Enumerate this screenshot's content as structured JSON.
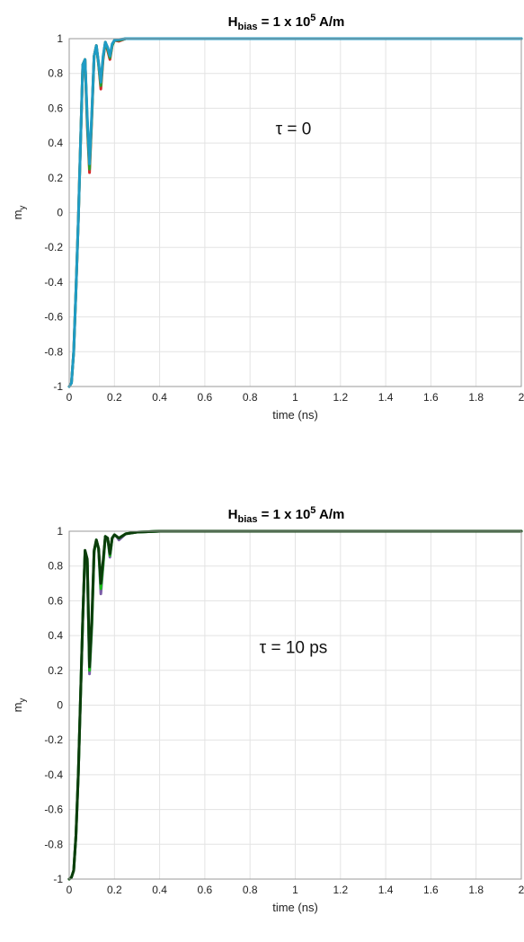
{
  "chart_data": [
    {
      "type": "line",
      "title_main": "H",
      "title_sub": "bias",
      "title_rest": " = 1 x 10",
      "title_sup": "5",
      "title_unit": " A/m",
      "xlabel": "time (ns)",
      "ylabel_main": "m",
      "ylabel_sub": "y",
      "annotation": "τ = 0",
      "xlim": [
        0,
        2
      ],
      "ylim": [
        -1,
        1
      ],
      "xticks": [
        "0",
        "0.2",
        "0.4",
        "0.6",
        "0.8",
        "1",
        "1.2",
        "1.4",
        "1.6",
        "1.8",
        "2"
      ],
      "yticks": [
        "1",
        "0.8",
        "0.6",
        "0.4",
        "0.2",
        "0",
        "-0.2",
        "-0.4",
        "-0.6",
        "-0.8",
        "-1"
      ],
      "grid": true,
      "series": [
        {
          "color": "#d62728",
          "x": [
            0,
            0.01,
            0.02,
            0.03,
            0.04,
            0.05,
            0.06,
            0.07,
            0.08,
            0.09,
            0.1,
            0.11,
            0.12,
            0.13,
            0.14,
            0.15,
            0.16,
            0.17,
            0.18,
            0.19,
            0.2,
            0.22,
            0.25,
            0.3,
            0.4,
            0.6,
            1.0,
            2.0
          ],
          "y": [
            -1,
            -0.98,
            -0.8,
            -0.45,
            -0.05,
            0.4,
            0.85,
            0.88,
            0.5,
            0.23,
            0.55,
            0.9,
            0.96,
            0.85,
            0.71,
            0.88,
            0.98,
            0.93,
            0.88,
            0.96,
            0.99,
            0.985,
            1.0,
            1.0,
            1.0,
            1.0,
            1.0,
            1.0
          ]
        },
        {
          "color": "#2ca02c",
          "x": [
            0,
            0.01,
            0.02,
            0.03,
            0.04,
            0.05,
            0.06,
            0.07,
            0.08,
            0.09,
            0.1,
            0.11,
            0.12,
            0.13,
            0.14,
            0.15,
            0.16,
            0.17,
            0.18,
            0.19,
            0.2,
            0.22,
            0.25,
            0.3,
            0.4,
            0.6,
            1.0,
            2.0
          ],
          "y": [
            -1,
            -0.98,
            -0.8,
            -0.45,
            -0.05,
            0.4,
            0.85,
            0.88,
            0.52,
            0.25,
            0.56,
            0.9,
            0.96,
            0.85,
            0.73,
            0.89,
            0.98,
            0.94,
            0.89,
            0.96,
            0.99,
            0.99,
            1.0,
            1.0,
            1.0,
            1.0,
            1.0,
            1.0
          ]
        },
        {
          "color": "#1f9bc4",
          "x": [
            0,
            0.01,
            0.02,
            0.03,
            0.04,
            0.05,
            0.06,
            0.07,
            0.08,
            0.09,
            0.1,
            0.11,
            0.12,
            0.13,
            0.14,
            0.15,
            0.16,
            0.17,
            0.18,
            0.19,
            0.2,
            0.22,
            0.25,
            0.3,
            0.4,
            0.6,
            1.0,
            2.0
          ],
          "y": [
            -1,
            -0.98,
            -0.8,
            -0.45,
            -0.05,
            0.4,
            0.85,
            0.88,
            0.55,
            0.28,
            0.58,
            0.9,
            0.96,
            0.86,
            0.75,
            0.9,
            0.98,
            0.95,
            0.9,
            0.97,
            0.99,
            0.995,
            1.0,
            1.0,
            1.0,
            1.0,
            1.0,
            1.0
          ]
        }
      ]
    },
    {
      "type": "line",
      "title_main": "H",
      "title_sub": "bias",
      "title_rest": " = 1 x 10",
      "title_sup": "5",
      "title_unit": " A/m",
      "xlabel": "time (ns)",
      "ylabel_main": "m",
      "ylabel_sub": "y",
      "annotation": "τ = 10 ps",
      "xlim": [
        0,
        2
      ],
      "ylim": [
        -1,
        1
      ],
      "xticks": [
        "0",
        "0.2",
        "0.4",
        "0.6",
        "0.8",
        "1",
        "1.2",
        "1.4",
        "1.6",
        "1.8",
        "2"
      ],
      "yticks": [
        "1",
        "0.8",
        "0.6",
        "0.4",
        "0.2",
        "0",
        "-0.2",
        "-0.4",
        "-0.6",
        "-0.8",
        "-1"
      ],
      "grid": true,
      "series": [
        {
          "color": "#7b5ea7",
          "x": [
            0,
            0.01,
            0.02,
            0.03,
            0.04,
            0.05,
            0.06,
            0.07,
            0.08,
            0.09,
            0.1,
            0.11,
            0.12,
            0.13,
            0.14,
            0.15,
            0.16,
            0.17,
            0.18,
            0.19,
            0.2,
            0.21,
            0.22,
            0.25,
            0.3,
            0.4,
            0.6,
            1.0,
            2.0
          ],
          "y": [
            -1,
            -0.99,
            -0.95,
            -0.75,
            -0.4,
            0.05,
            0.5,
            0.88,
            0.82,
            0.18,
            0.45,
            0.88,
            0.95,
            0.9,
            0.64,
            0.8,
            0.97,
            0.96,
            0.85,
            0.96,
            0.98,
            0.97,
            0.95,
            0.985,
            0.995,
            1.0,
            1.0,
            1.0,
            1.0
          ]
        },
        {
          "color": "#18c018",
          "x": [
            0,
            0.01,
            0.02,
            0.03,
            0.04,
            0.05,
            0.06,
            0.07,
            0.08,
            0.09,
            0.1,
            0.11,
            0.12,
            0.13,
            0.14,
            0.15,
            0.16,
            0.17,
            0.18,
            0.19,
            0.2,
            0.21,
            0.22,
            0.25,
            0.3,
            0.4,
            0.6,
            1.0,
            2.0
          ],
          "y": [
            -1,
            -0.99,
            -0.95,
            -0.75,
            -0.4,
            0.05,
            0.5,
            0.88,
            0.83,
            0.2,
            0.47,
            0.88,
            0.95,
            0.9,
            0.67,
            0.81,
            0.97,
            0.96,
            0.86,
            0.96,
            0.98,
            0.97,
            0.96,
            0.985,
            0.995,
            1.0,
            1.0,
            1.0,
            1.0
          ]
        },
        {
          "color": "#0b3d0b",
          "x": [
            0,
            0.01,
            0.02,
            0.03,
            0.04,
            0.05,
            0.06,
            0.07,
            0.08,
            0.09,
            0.1,
            0.11,
            0.12,
            0.13,
            0.14,
            0.15,
            0.16,
            0.17,
            0.18,
            0.19,
            0.2,
            0.21,
            0.22,
            0.25,
            0.3,
            0.4,
            0.6,
            1.0,
            2.0
          ],
          "y": [
            -1,
            -0.99,
            -0.95,
            -0.75,
            -0.4,
            0.05,
            0.5,
            0.89,
            0.84,
            0.22,
            0.5,
            0.89,
            0.95,
            0.9,
            0.7,
            0.83,
            0.97,
            0.96,
            0.87,
            0.96,
            0.98,
            0.97,
            0.96,
            0.985,
            0.995,
            1.0,
            1.0,
            1.0,
            1.0
          ]
        }
      ]
    }
  ]
}
